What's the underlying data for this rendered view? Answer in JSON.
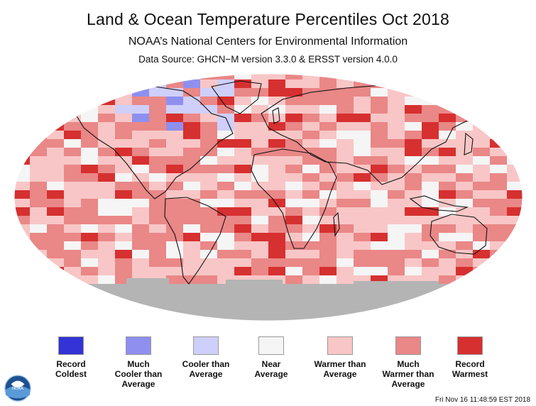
{
  "header": {
    "title": "Land & Ocean Temperature Percentiles Oct 2018",
    "subtitle": "NOAA’s National Centers for Environmental Information",
    "source": "Data Source: GHCN−M version 3.3.0 & ERSST version 4.0.0"
  },
  "legend": {
    "items": [
      {
        "label": "Record\nColdest",
        "color": "#3333d6"
      },
      {
        "label": "Much\nCooler than\nAverage",
        "color": "#8f8ff0"
      },
      {
        "label": "Cooler than\nAverage",
        "color": "#cfcffb"
      },
      {
        "label": "Near\nAverage",
        "color": "#f5f5f5"
      },
      {
        "label": "Warmer than\nAverage",
        "color": "#f8c6c6"
      },
      {
        "label": "Much\nWarmer than\nAverage",
        "color": "#ea8787"
      },
      {
        "label": "Record\nWarmest",
        "color": "#d63030"
      }
    ]
  },
  "map": {
    "no_data_color": "#b4b4b4",
    "coastline_color": "#111111"
  },
  "logo": {
    "icon": "noaa-logo-icon",
    "text": "NOAA"
  },
  "footer": {
    "timestamp": "Fri Nov 16 11:48:59 EST 2018"
  }
}
